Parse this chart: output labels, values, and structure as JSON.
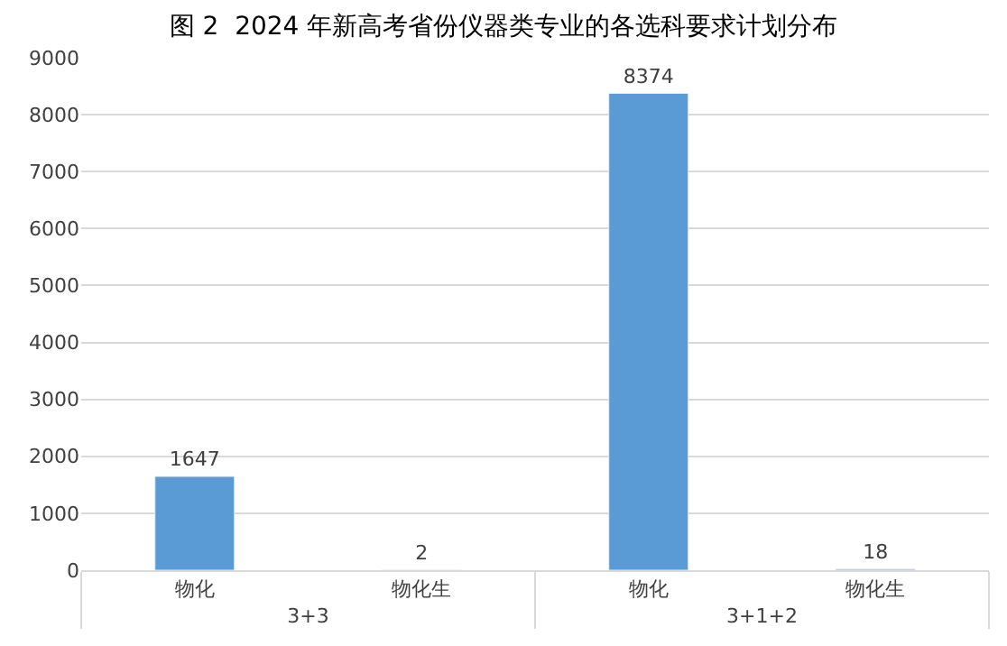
{
  "chart_data": {
    "type": "bar",
    "title": "图 2  2024 年新高考省份仪器类专业的各选科要求计划分布",
    "categories": [
      "物化",
      "物化生",
      "物化",
      "物化生"
    ],
    "values": [
      1647,
      2,
      8374,
      18
    ],
    "color": "#5b9bd5",
    "annotations": [
      "3+3",
      "3+1+2"
    ],
    "ylim": [
      0,
      9000
    ],
    "yticks": [
      0,
      1000,
      2000,
      3000,
      4000,
      5000,
      6000,
      7000,
      8000,
      9000
    ],
    "grid": "y",
    "data_labels": true,
    "legend": false
  }
}
